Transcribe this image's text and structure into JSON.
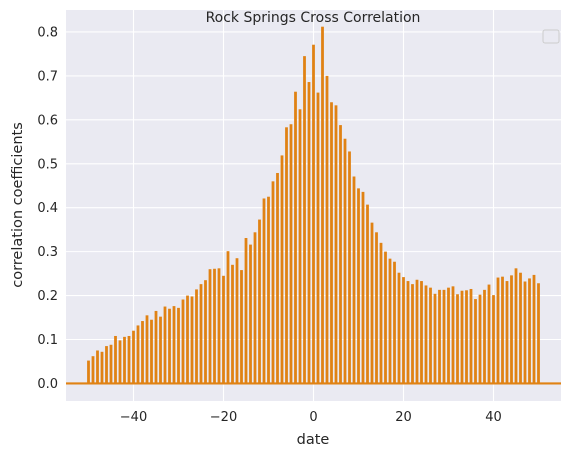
{
  "chart_data": {
    "type": "bar",
    "title": "Rock Springs Cross Correlation",
    "xlabel": "date",
    "ylabel": "correlation coefficients",
    "xlim": [
      -55,
      55
    ],
    "ylim": [
      -0.04,
      0.85
    ],
    "xticks": [
      -40,
      -20,
      0,
      20,
      40
    ],
    "xtick_labels": [
      "−40",
      "−20",
      "0",
      "20",
      "40"
    ],
    "yticks": [
      0.0,
      0.1,
      0.2,
      0.3,
      0.4,
      0.5,
      0.6,
      0.7,
      0.8
    ],
    "ytick_labels": [
      "0.0",
      "0.1",
      "0.2",
      "0.3",
      "0.4",
      "0.5",
      "0.6",
      "0.7",
      "0.8"
    ],
    "grid": true,
    "legend": "top-right (empty)",
    "bar_color": "#e08214",
    "background_color": "#eaeaf2",
    "baseline": 0,
    "x": [
      -50,
      -49,
      -48,
      -47,
      -46,
      -45,
      -44,
      -43,
      -42,
      -41,
      -40,
      -39,
      -38,
      -37,
      -36,
      -35,
      -34,
      -33,
      -32,
      -31,
      -30,
      -29,
      -28,
      -27,
      -26,
      -25,
      -24,
      -23,
      -22,
      -21,
      -20,
      -19,
      -18,
      -17,
      -16,
      -15,
      -14,
      -13,
      -12,
      -11,
      -10,
      -9,
      -8,
      -7,
      -6,
      -5,
      -4,
      -3,
      -2,
      -1,
      0,
      1,
      2,
      3,
      4,
      5,
      6,
      7,
      8,
      9,
      10,
      11,
      12,
      13,
      14,
      15,
      16,
      17,
      18,
      19,
      20,
      21,
      22,
      23,
      24,
      25,
      26,
      27,
      28,
      29,
      30,
      31,
      32,
      33,
      34,
      35,
      36,
      37,
      38,
      39,
      40,
      41,
      42,
      43,
      44,
      45,
      46,
      47,
      48,
      49,
      50
    ],
    "values": [
      0.052,
      0.062,
      0.075,
      0.072,
      0.085,
      0.088,
      0.108,
      0.098,
      0.106,
      0.108,
      0.12,
      0.132,
      0.142,
      0.155,
      0.145,
      0.165,
      0.152,
      0.175,
      0.17,
      0.176,
      0.172,
      0.191,
      0.2,
      0.198,
      0.214,
      0.226,
      0.235,
      0.26,
      0.261,
      0.262,
      0.245,
      0.301,
      0.27,
      0.285,
      0.258,
      0.331,
      0.316,
      0.344,
      0.373,
      0.421,
      0.425,
      0.46,
      0.479,
      0.519,
      0.583,
      0.59,
      0.664,
      0.624,
      0.745,
      0.686,
      0.771,
      0.662,
      0.812,
      0.7,
      0.64,
      0.633,
      0.588,
      0.557,
      0.528,
      0.471,
      0.444,
      0.436,
      0.407,
      0.366,
      0.344,
      0.32,
      0.3,
      0.284,
      0.277,
      0.252,
      0.242,
      0.233,
      0.226,
      0.236,
      0.233,
      0.223,
      0.218,
      0.204,
      0.213,
      0.213,
      0.218,
      0.221,
      0.203,
      0.211,
      0.212,
      0.215,
      0.192,
      0.202,
      0.213,
      0.225,
      0.201,
      0.241,
      0.243,
      0.233,
      0.246,
      0.262,
      0.252,
      0.232,
      0.239,
      0.247,
      0.228
    ]
  }
}
